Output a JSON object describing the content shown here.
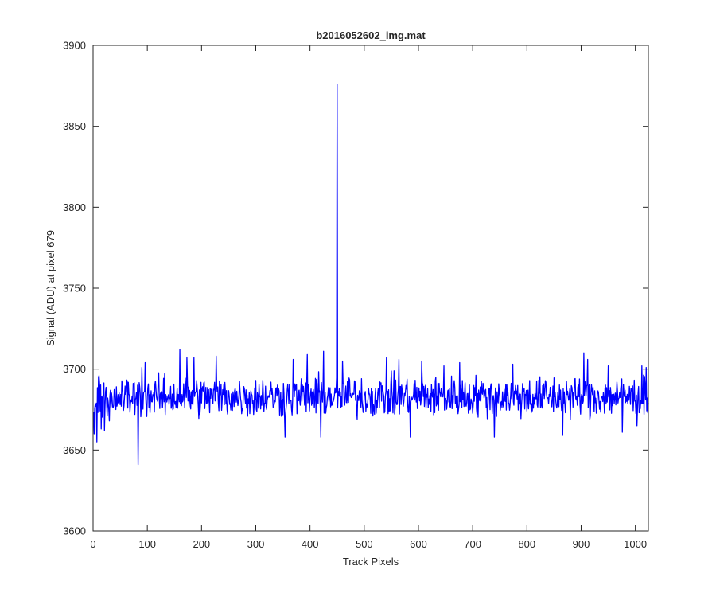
{
  "chart_data": {
    "type": "line",
    "title": "b2016052602_img.mat",
    "xlabel": "Track Pixels",
    "ylabel": "Signal (ADU) at pixel 679",
    "xlim": [
      0,
      1024
    ],
    "ylim": [
      3600,
      3900
    ],
    "xticks": [
      0,
      100,
      200,
      300,
      400,
      500,
      600,
      700,
      800,
      900,
      1000
    ],
    "yticks": [
      3600,
      3650,
      3700,
      3750,
      3800,
      3850,
      3900
    ],
    "grid": false,
    "legend": "none",
    "series": [
      {
        "color": "#0000ff",
        "baseline": 3683,
        "noise_amplitude": 13,
        "count": 1024,
        "x_start": 1,
        "features": [
          {
            "x": 2,
            "y": 3660
          },
          {
            "x": 5,
            "y": 3677
          },
          {
            "x": 7,
            "y": 3655
          },
          {
            "x": 11,
            "y": 3696
          },
          {
            "x": 15,
            "y": 3663
          },
          {
            "x": 21,
            "y": 3662
          },
          {
            "x": 30,
            "y": 3668
          },
          {
            "x": 83,
            "y": 3641
          },
          {
            "x": 90,
            "y": 3701
          },
          {
            "x": 96,
            "y": 3704
          },
          {
            "x": 160,
            "y": 3712
          },
          {
            "x": 173,
            "y": 3707
          },
          {
            "x": 186,
            "y": 3707
          },
          {
            "x": 227,
            "y": 3708
          },
          {
            "x": 354,
            "y": 3658
          },
          {
            "x": 369,
            "y": 3706
          },
          {
            "x": 395,
            "y": 3709
          },
          {
            "x": 420,
            "y": 3658
          },
          {
            "x": 425,
            "y": 3711
          },
          {
            "x": 450,
            "y": 3876
          },
          {
            "x": 451,
            "y": 3676
          },
          {
            "x": 460,
            "y": 3705
          },
          {
            "x": 541,
            "y": 3707
          },
          {
            "x": 564,
            "y": 3706
          },
          {
            "x": 585,
            "y": 3658
          },
          {
            "x": 606,
            "y": 3705
          },
          {
            "x": 647,
            "y": 3702
          },
          {
            "x": 676,
            "y": 3704
          },
          {
            "x": 740,
            "y": 3658
          },
          {
            "x": 774,
            "y": 3703
          },
          {
            "x": 866,
            "y": 3659
          },
          {
            "x": 905,
            "y": 3710
          },
          {
            "x": 912,
            "y": 3706
          },
          {
            "x": 950,
            "y": 3702
          },
          {
            "x": 976,
            "y": 3661
          },
          {
            "x": 1003,
            "y": 3665
          },
          {
            "x": 1012,
            "y": 3702
          },
          {
            "x": 1020,
            "y": 3701
          }
        ]
      }
    ]
  }
}
